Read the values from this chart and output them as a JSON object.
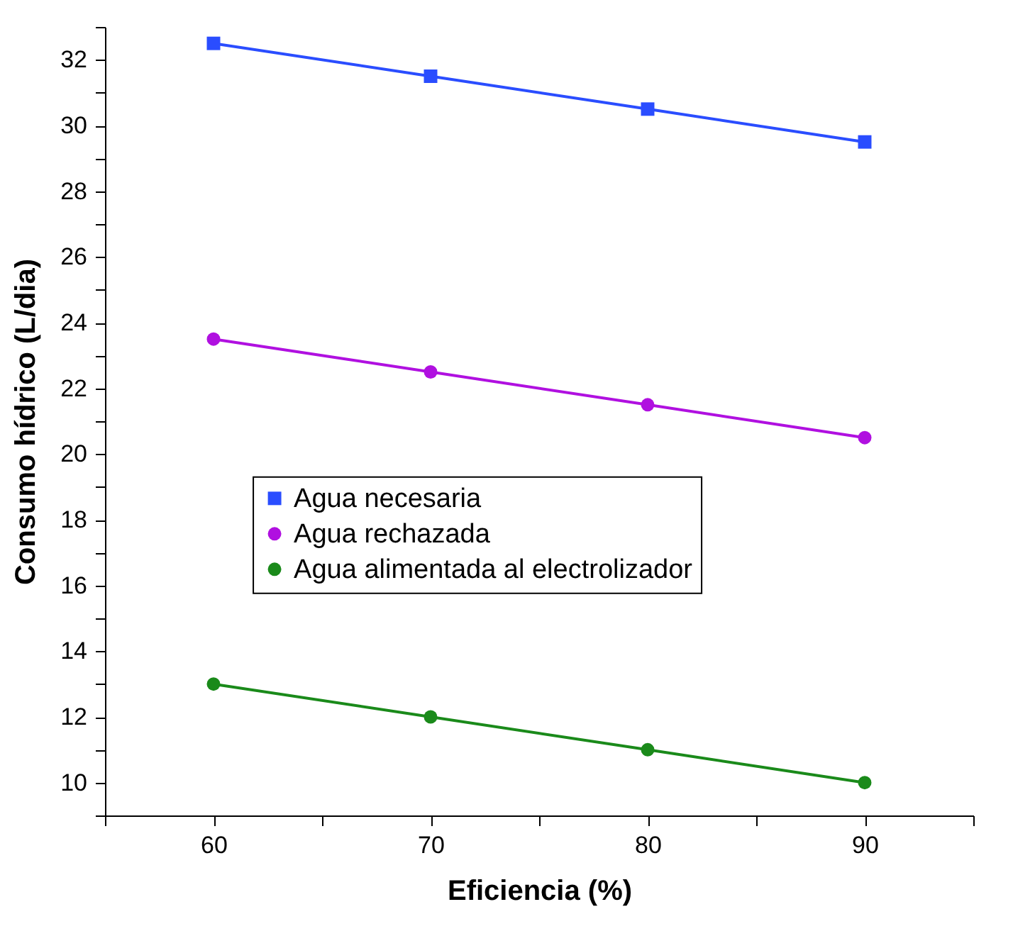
{
  "chart_data": {
    "type": "line",
    "xlabel": "Eficiencia (%)",
    "ylabel": "Consumo hídrico (L/dia)",
    "x": [
      60,
      70,
      80,
      90
    ],
    "series": [
      {
        "name": "Agua necesaria",
        "color": "#2a4dff",
        "marker": "square",
        "values": [
          32.5,
          31.5,
          30.5,
          29.5
        ]
      },
      {
        "name": "Agua rechazada",
        "color": "#b010e0",
        "marker": "circle",
        "values": [
          23.5,
          22.5,
          21.5,
          20.5
        ]
      },
      {
        "name": "Agua alimentada al electrolizador",
        "color": "#1a8a1a",
        "marker": "circle",
        "values": [
          13,
          12,
          11,
          10
        ]
      }
    ],
    "xlim": [
      55,
      95
    ],
    "xticks": [
      {
        "value": 55,
        "label": null
      },
      60,
      {
        "value": 65,
        "label": null
      },
      70,
      {
        "value": 75,
        "label": null
      },
      80,
      {
        "value": 85,
        "label": null
      },
      90,
      {
        "value": 95,
        "label": null
      }
    ],
    "ylim": [
      9,
      33
    ],
    "yticks": [
      {
        "value": 9,
        "label": null
      },
      10,
      {
        "value": 11,
        "label": null
      },
      12,
      {
        "value": 13,
        "label": null
      },
      14,
      {
        "value": 15,
        "label": null
      },
      16,
      {
        "value": 17,
        "label": null
      },
      18,
      {
        "value": 19,
        "label": null
      },
      20,
      {
        "value": 21,
        "label": null
      },
      22,
      {
        "value": 23,
        "label": null
      },
      24,
      {
        "value": 25,
        "label": null
      },
      26,
      {
        "value": 27,
        "label": null
      },
      28,
      {
        "value": 29,
        "label": null
      },
      30,
      {
        "value": 31,
        "label": null
      },
      32,
      {
        "value": 33,
        "label": null
      }
    ],
    "grid": false,
    "legend": "center",
    "line_style": "solid"
  }
}
